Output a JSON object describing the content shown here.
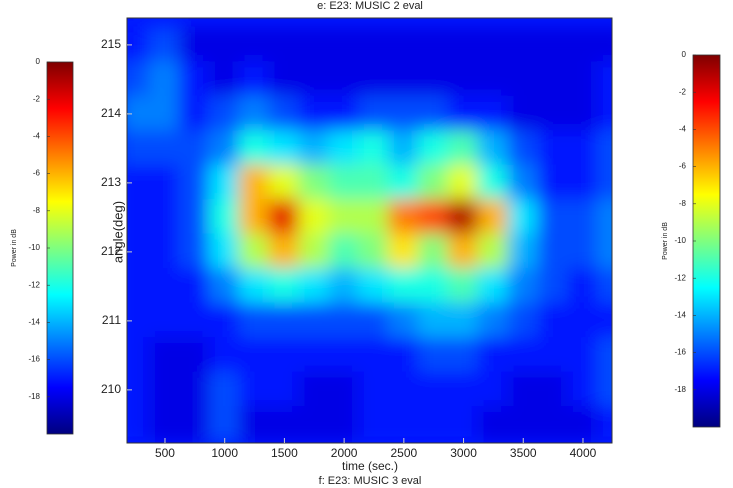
{
  "chart_data": {
    "type": "heatmap",
    "title": "e: E23: MUSIC 2 eval",
    "caption_below": "f: E23: MUSIC 3 eval",
    "xlabel": "time (sec.)",
    "ylabel": "angle(deg)",
    "x": [
      250,
      500,
      750,
      1000,
      1250,
      1500,
      1750,
      2000,
      2250,
      2500,
      2750,
      3000,
      3250,
      3500,
      3750,
      4000,
      4250
    ],
    "y": [
      215,
      214.5,
      214,
      213.5,
      213,
      212.5,
      212,
      211.5,
      211,
      210.5,
      210,
      209.5
    ],
    "z": [
      [
        -17,
        -16,
        -18,
        -18,
        -18,
        -18,
        -18,
        -18,
        -18,
        -18,
        -18,
        -18,
        -18,
        -18,
        -18,
        -18,
        -18
      ],
      [
        -16,
        -15,
        -17,
        -18,
        -17,
        -18,
        -18,
        -18,
        -18,
        -18,
        -18,
        -18,
        -18,
        -18,
        -18,
        -18,
        -17
      ],
      [
        -15,
        -15,
        -17,
        -16,
        -15,
        -16,
        -17,
        -17,
        -16,
        -16,
        -16,
        -17,
        -17,
        -18,
        -18,
        -18,
        -17
      ],
      [
        -16,
        -16,
        -16,
        -15,
        -12,
        -13,
        -14,
        -13,
        -12,
        -14,
        -12,
        -11,
        -14,
        -16,
        -17,
        -17,
        -16
      ],
      [
        -17,
        -17,
        -16,
        -13,
        -6,
        -8,
        -10,
        -11,
        -11,
        -12,
        -10,
        -8,
        -12,
        -15,
        -17,
        -17,
        -16
      ],
      [
        -17,
        -17,
        -16,
        -12,
        -6,
        -2,
        -8,
        -9,
        -9,
        -5,
        -4,
        -1,
        -6,
        -13,
        -16,
        -16,
        -15
      ],
      [
        -17,
        -17,
        -16,
        -13,
        -9,
        -6,
        -9,
        -11,
        -10,
        -7,
        -10,
        -6,
        -9,
        -14,
        -16,
        -16,
        -15
      ],
      [
        -17,
        -17,
        -17,
        -15,
        -13,
        -12,
        -13,
        -14,
        -13,
        -12,
        -12,
        -11,
        -13,
        -15,
        -16,
        -17,
        -16
      ],
      [
        -17,
        -17,
        -17,
        -17,
        -16,
        -16,
        -16,
        -16,
        -16,
        -15,
        -14,
        -14,
        -15,
        -16,
        -17,
        -17,
        -17
      ],
      [
        -17,
        -18,
        -18,
        -17,
        -17,
        -17,
        -17,
        -17,
        -17,
        -17,
        -16,
        -16,
        -17,
        -17,
        -17,
        -17,
        -16
      ],
      [
        -17,
        -18,
        -18,
        -16,
        -17,
        -17,
        -18,
        -18,
        -17,
        -17,
        -17,
        -17,
        -17,
        -18,
        -18,
        -17,
        -16
      ],
      [
        -17,
        -18,
        -18,
        -16,
        -18,
        -18,
        -18,
        -18,
        -17,
        -17,
        -17,
        -17,
        -18,
        -18,
        -18,
        -18,
        -17
      ]
    ],
    "xlim": [
      182,
      4243
    ],
    "ylim": [
      209.23,
      215.39
    ],
    "xticks": [
      500,
      1000,
      1500,
      2000,
      2500,
      3000,
      3500,
      4000
    ],
    "yticks": [
      210,
      211,
      212,
      213,
      214,
      215
    ],
    "colormap": [
      "#00007f",
      "#0000ff",
      "#007fff",
      "#00ffff",
      "#7fff7f",
      "#ffff00",
      "#ff7f00",
      "#ff0000",
      "#7f0000"
    ],
    "colorbars": [
      {
        "label": "Power in dB",
        "clim": [
          -20,
          0
        ],
        "ticks": [
          0,
          -2,
          -4,
          -6,
          -8,
          -10,
          -12,
          -14,
          -16,
          -18
        ]
      },
      {
        "label": "Power in dB",
        "clim": [
          -20,
          0
        ],
        "ticks": [
          0,
          -2,
          -4,
          -6,
          -8,
          -10,
          -12,
          -14,
          -16,
          -18
        ]
      }
    ]
  }
}
